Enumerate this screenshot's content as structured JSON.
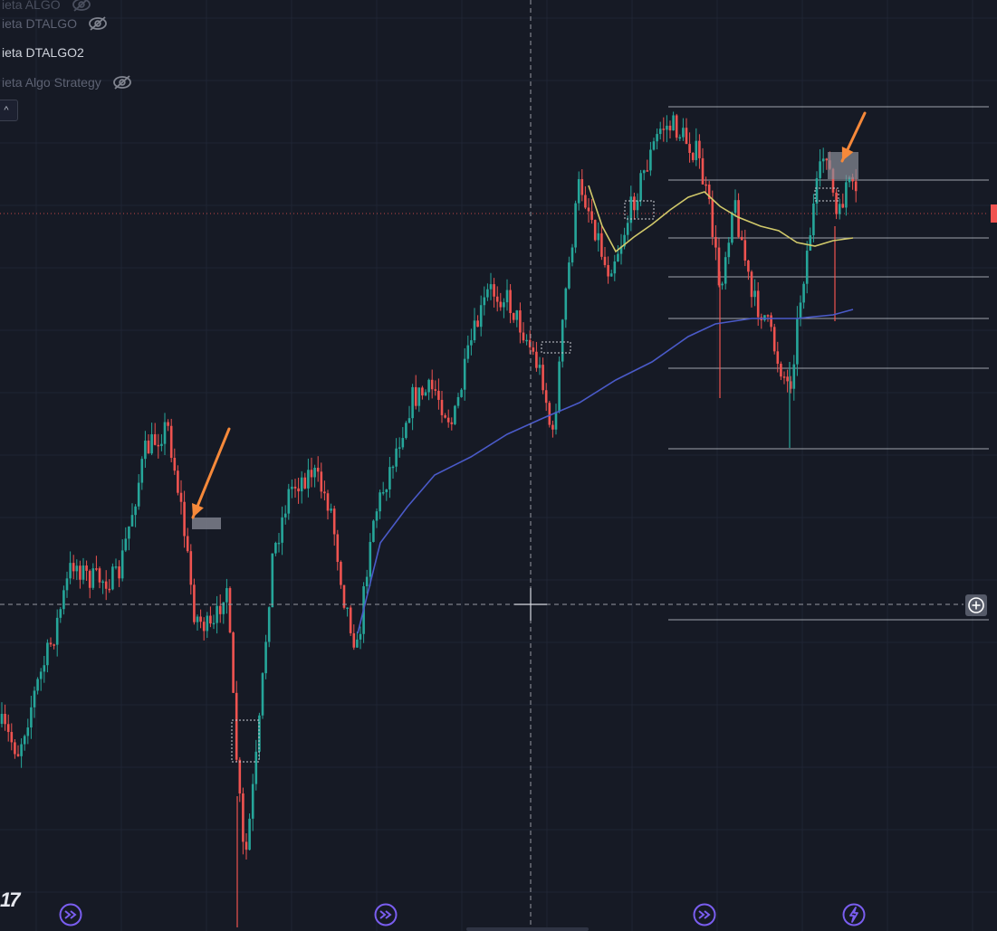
{
  "legend": {
    "rows": [
      {
        "label": "ieta DTALGO",
        "state": "hidden"
      },
      {
        "label": "ieta DTALGO2",
        "state": "visible"
      },
      {
        "label": "ieta Algo Strategy",
        "state": "hidden"
      }
    ],
    "collapse_symbol": "^"
  },
  "logo_text": "17",
  "icons": {
    "eye_off": "eye-off-icon",
    "collapse": "chevron-up-icon",
    "plus": "plus-circle-icon",
    "replay": "replay-icon",
    "lightning": "lightning-icon"
  },
  "colors": {
    "background": "#161a25",
    "bull": "#26a69a",
    "bear": "#ef5350",
    "ma_slow": "#4a5ac8",
    "ma_fast": "#d1c96a",
    "levels": "#b8bcc4",
    "arrow": "#f6893a",
    "event_icon": "#7a5ef0"
  },
  "chart_data": {
    "type": "candlestick",
    "title": "",
    "xlabel": "",
    "ylabel": "",
    "grid": true,
    "crosshair": true,
    "series": [
      {
        "role": "candles",
        "ohlc_trend": [
          70,
          140,
          90,
          170,
          120,
          60,
          170,
          95,
          220,
          160,
          180,
          150,
          90,
          70,
          140,
          210,
          260,
          230,
          270,
          300,
          260,
          330,
          330,
          300,
          250,
          300,
          240,
          200,
          190,
          240,
          200,
          230,
          270,
          290,
          250,
          240,
          230,
          270,
          240,
          200,
          240,
          230,
          170,
          150,
          140,
          185,
          230,
          250,
          250,
          215,
          200,
          190,
          185,
          170,
          165,
          175,
          180,
          215,
          245,
          290,
          270,
          260,
          305,
          310,
          310,
          240,
          250,
          245,
          280,
          330,
          290,
          295,
          300,
          250,
          290,
          320,
          330,
          340,
          320,
          350,
          390,
          420,
          440,
          450,
          460,
          465,
          490,
          510,
          525,
          540,
          540,
          520,
          560,
          580,
          600,
          610,
          615,
          650,
          645,
          660
        ]
      },
      {
        "role": "moving-average-slow"
      },
      {
        "role": "moving-average-fast"
      }
    ],
    "annotations": [
      "down-arrow",
      "down-arrow",
      "horizontal-levels"
    ]
  }
}
